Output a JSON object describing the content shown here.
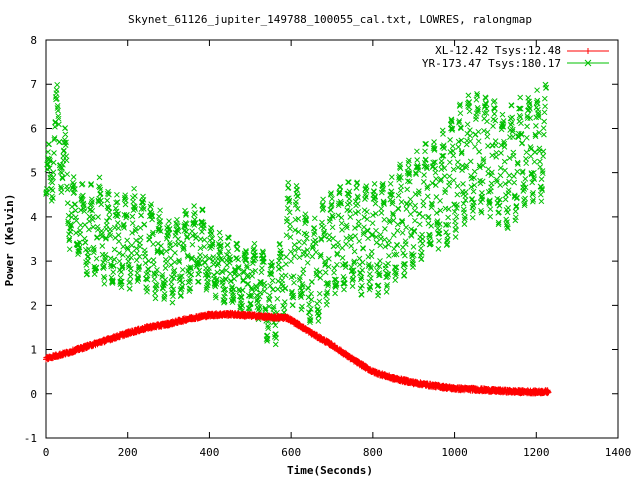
{
  "chart_data": {
    "type": "scatter",
    "title": "Skynet_61126_jupiter_149788_100055_cal.txt, LOWRES, ralongmap",
    "xlabel": "Time(Seconds)",
    "ylabel": "Power (Kelvin)",
    "xlim": [
      0,
      1400
    ],
    "ylim": [
      -1,
      8
    ],
    "x_ticks": [
      "0",
      "200",
      "400",
      "600",
      "800",
      "1000",
      "1200",
      "1400"
    ],
    "y_ticks": [
      "-1",
      "0",
      "1",
      "2",
      "3",
      "4",
      "5",
      "6",
      "7",
      "8"
    ],
    "x_tick_values": [
      0,
      200,
      400,
      600,
      800,
      1000,
      1200,
      1400
    ],
    "y_tick_values": [
      -1,
      0,
      1,
      2,
      3,
      4,
      5,
      6,
      7,
      8
    ],
    "grid": false,
    "legend_position": "top-right",
    "series": [
      {
        "name": "XL-12.42 Tsys:12.48",
        "color": "#ff0000",
        "marker": "plus",
        "x": [
          0,
          50,
          100,
          150,
          200,
          250,
          300,
          350,
          400,
          450,
          500,
          550,
          590,
          620,
          650,
          700,
          750,
          800,
          850,
          900,
          950,
          1000,
          1050,
          1100,
          1150,
          1200,
          1230
        ],
        "y": [
          0.8,
          0.92,
          1.07,
          1.22,
          1.37,
          1.5,
          1.58,
          1.7,
          1.78,
          1.8,
          1.77,
          1.73,
          1.72,
          1.55,
          1.37,
          1.1,
          0.78,
          0.5,
          0.35,
          0.25,
          0.18,
          0.12,
          0.1,
          0.07,
          0.05,
          0.04,
          0.05
        ]
      },
      {
        "name": "YR-173.47 Tsys:180.17",
        "color": "#00c000",
        "marker": "cross",
        "x": [
          0,
          10,
          20,
          35,
          50,
          70,
          90,
          110,
          130,
          150,
          170,
          190,
          210,
          230,
          250,
          270,
          290,
          310,
          330,
          350,
          370,
          390,
          410,
          430,
          450,
          470,
          490,
          510,
          530,
          550,
          570,
          590,
          610,
          630,
          650,
          670,
          690,
          710,
          730,
          750,
          770,
          790,
          810,
          830,
          850,
          870,
          890,
          910,
          930,
          950,
          970,
          990,
          1010,
          1030,
          1050,
          1070,
          1090,
          1110,
          1130,
          1150,
          1170,
          1190,
          1210,
          1225
        ],
        "y": [
          4.4,
          5.0,
          5.7,
          6.0,
          4.6,
          3.9,
          3.8,
          3.6,
          3.7,
          3.5,
          3.4,
          3.4,
          3.5,
          3.6,
          3.3,
          3.2,
          3.0,
          3.1,
          3.2,
          3.2,
          3.4,
          3.2,
          2.9,
          2.8,
          2.8,
          2.6,
          2.5,
          2.6,
          2.4,
          2.0,
          2.3,
          3.3,
          3.5,
          3.0,
          2.7,
          3.0,
          3.3,
          3.4,
          3.5,
          3.6,
          3.5,
          3.6,
          3.5,
          3.5,
          3.7,
          3.9,
          4.0,
          4.2,
          4.4,
          4.5,
          4.6,
          4.8,
          5.1,
          5.3,
          5.4,
          5.5,
          5.4,
          5.1,
          5.0,
          5.3,
          5.5,
          5.6,
          5.6,
          6.0
        ],
        "spread": [
          0.5,
          0.8,
          0.9,
          1.0,
          0.9,
          0.7,
          0.8,
          0.9,
          1.0,
          0.9,
          0.9,
          0.9,
          0.9,
          1.0,
          0.9,
          0.9,
          0.8,
          0.8,
          0.8,
          0.8,
          0.7,
          0.7,
          0.6,
          0.6,
          0.6,
          0.6,
          0.6,
          0.6,
          0.7,
          0.9,
          0.8,
          1.2,
          1.3,
          1.0,
          1.0,
          1.1,
          1.1,
          1.1,
          1.1,
          1.1,
          1.1,
          1.1,
          1.1,
          1.1,
          1.1,
          1.1,
          1.1,
          1.1,
          1.1,
          1.1,
          1.1,
          1.2,
          1.2,
          1.2,
          1.2,
          1.2,
          1.2,
          1.2,
          1.2,
          1.2,
          1.1,
          1.1,
          1.1,
          0.9
        ]
      }
    ]
  }
}
